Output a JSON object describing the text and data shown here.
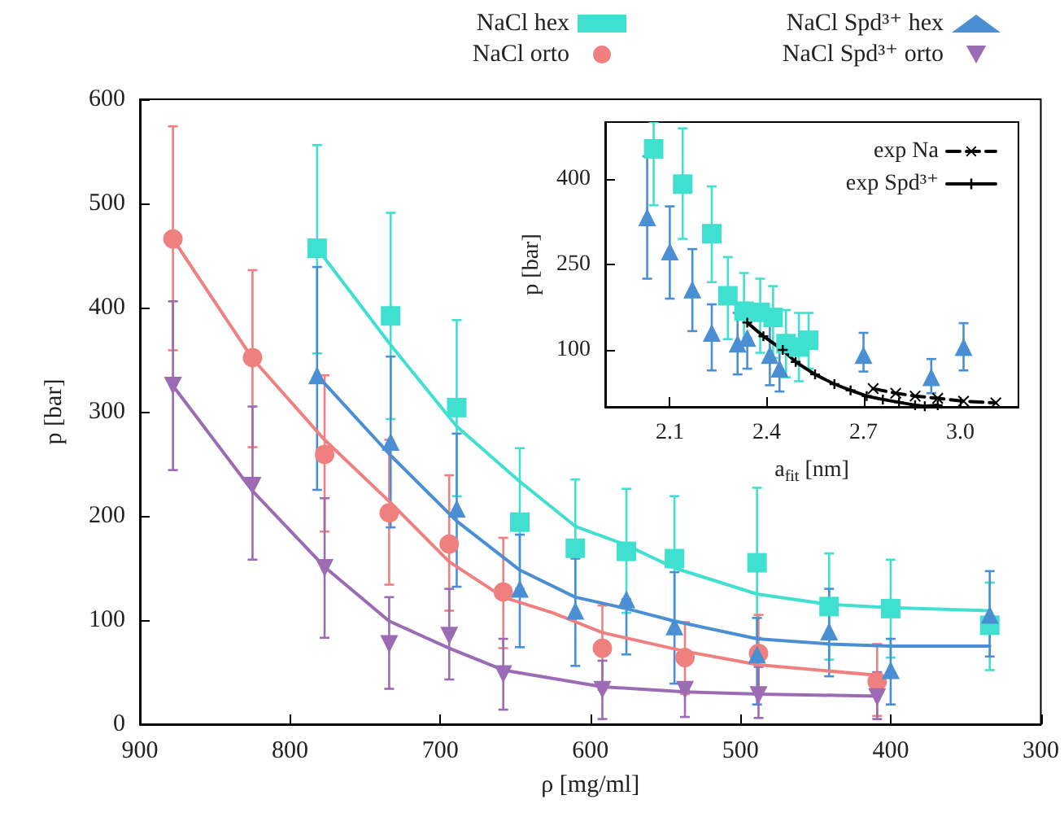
{
  "chart_data": [
    {
      "type": "scatter",
      "xlabel": "ρ [mg/ml]",
      "ylabel": "p [bar]",
      "xlim": [
        900,
        300
      ],
      "ylim": [
        0,
        600
      ],
      "xticks": [
        900,
        800,
        700,
        600,
        500,
        400,
        300
      ],
      "yticks": [
        0,
        100,
        200,
        300,
        400,
        500,
        600
      ],
      "legend": "top",
      "grid": false,
      "series": [
        {
          "name": "NaCl hex",
          "color": "#40e0d0",
          "marker": "square",
          "x": [
            782,
            733,
            689,
            647,
            610,
            576,
            544,
            489,
            441,
            400,
            334
          ],
          "values": [
            457,
            392,
            304,
            194,
            169,
            166,
            159,
            155,
            113,
            111,
            95
          ],
          "errors": [
            [
              356,
              556
            ],
            [
              293,
              491
            ],
            [
              219,
              388
            ],
            [
              130,
              265
            ],
            [
              107,
              235
            ],
            [
              107,
              226
            ],
            [
              99,
              219
            ],
            [
              83,
              227
            ],
            [
              62,
              164
            ],
            [
              64,
              158
            ],
            [
              52,
              136
            ]
          ]
        },
        {
          "name": "NaCl orto",
          "color": "#f08080",
          "marker": "circle",
          "x": [
            878,
            825,
            777,
            734,
            694,
            658,
            592,
            537,
            488,
            409
          ],
          "values": [
            466,
            352,
            259,
            203,
            173,
            127,
            73,
            64,
            68,
            41
          ],
          "errors": [
            [
              359,
              574
            ],
            [
              266,
              436
            ],
            [
              185,
              335
            ],
            [
              134,
              273
            ],
            [
              109,
              239
            ],
            [
              73,
              179
            ],
            [
              33,
              114
            ],
            [
              29,
              98
            ],
            [
              31,
              105
            ],
            [
              8,
              77
            ]
          ]
        },
        {
          "name": "NaCl Spd³⁺ hex",
          "color": "#4a8fd3",
          "marker": "triangle",
          "x": [
            782,
            733,
            689,
            647,
            610,
            576,
            544,
            489,
            441,
            400,
            334
          ],
          "values": [
            335,
            271,
            207,
            130,
            109,
            120,
            94,
            67,
            89,
            52,
            105
          ],
          "errors": [
            [
              225,
              439
            ],
            [
              189,
              353
            ],
            [
              132,
              279
            ],
            [
              74,
              182
            ],
            [
              56,
              159
            ],
            [
              67,
              120
            ],
            [
              39,
              146
            ],
            [
              19,
              102
            ],
            [
              46,
              130
            ],
            [
              19,
              82
            ],
            [
              65,
              147
            ]
          ]
        },
        {
          "name": "NaCl Spd³⁺ orto",
          "color": "#9b6bb3",
          "marker": "triangle-down",
          "x": [
            878,
            825,
            777,
            734,
            694,
            658,
            592,
            537,
            488,
            409
          ],
          "values": [
            325,
            229,
            150,
            77,
            85,
            48,
            33,
            33,
            28,
            26
          ],
          "errors": [
            [
              244,
              406
            ],
            [
              158,
              305
            ],
            [
              83,
              217
            ],
            [
              34,
              122
            ],
            [
              43,
              130
            ],
            [
              14,
              82
            ],
            [
              5,
              61
            ],
            [
              7,
              33
            ],
            [
              6,
              55
            ],
            [
              5,
              50
            ]
          ]
        },
        {
          "type": "line",
          "color": "#40e0d0",
          "marker": "none",
          "line_style": "solid",
          "x": [
            782,
            733,
            689,
            647,
            610,
            576,
            544,
            489,
            441,
            400,
            334
          ],
          "values": [
            457,
            364,
            286,
            233,
            190,
            172,
            150,
            125,
            115,
            112,
            109
          ]
        },
        {
          "type": "line",
          "color": "#f08080",
          "marker": "none",
          "line_style": "solid",
          "x": [
            878,
            825,
            777,
            734,
            694,
            658,
            625,
            592,
            537,
            488,
            409
          ],
          "values": [
            466,
            351,
            273,
            214,
            156,
            122,
            107,
            88,
            70,
            57,
            47
          ]
        },
        {
          "type": "line",
          "color": "#4a8fd3",
          "marker": "none",
          "line_style": "solid",
          "x": [
            782,
            733,
            689,
            647,
            610,
            576,
            544,
            489,
            441,
            400,
            334
          ],
          "values": [
            335,
            258,
            195,
            148,
            122,
            111,
            99,
            82,
            77,
            75,
            75
          ]
        },
        {
          "type": "line",
          "color": "#9b6bb3",
          "marker": "none",
          "line_style": "solid",
          "x": [
            878,
            825,
            777,
            734,
            694,
            658,
            625,
            592,
            537,
            488,
            409
          ],
          "values": [
            325,
            224,
            151,
            99,
            73,
            52,
            44,
            36,
            31,
            29,
            27
          ]
        }
      ]
    },
    {
      "type": "scatter",
      "xlabel": "a$_{fit}$ [nm]",
      "ylabel": "p [bar]",
      "xlim": [
        1.9,
        3.18
      ],
      "ylim": [
        0,
        500
      ],
      "xticks": [
        2.1,
        2.4,
        2.7,
        {
          "value": 3,
          "label": "3.0"
        }
      ],
      "yticks": [
        100,
        250,
        400
      ],
      "legend": "top right",
      "grid": false,
      "series": [
        {
          "color": "#40e0d0",
          "marker": "square",
          "x": [
            2.05,
            2.14,
            2.23,
            2.28,
            2.33,
            2.38,
            2.42,
            2.46,
            2.5,
            2.53
          ],
          "values": [
            453,
            391,
            304,
            195,
            168,
            166,
            157,
            111,
            105,
            117
          ],
          "errors": [
            [
              354,
              500
            ],
            [
              295,
              489
            ],
            [
              219,
              387
            ],
            [
              119,
              263
            ],
            [
              109,
              235
            ],
            [
              95,
              225
            ],
            [
              86,
              212
            ],
            [
              52,
              170
            ],
            [
              45,
              165
            ],
            [
              67,
              165
            ]
          ]
        },
        {
          "color": "#4a8fd3",
          "marker": "triangle",
          "x": [
            2.03,
            2.1,
            2.17,
            2.23,
            2.31,
            2.34,
            2.41,
            2.44,
            2.7,
            2.91,
            3.01
          ],
          "values": [
            333,
            273,
            206,
            130,
            111,
            121,
            91,
            67,
            91,
            52,
            105
          ],
          "errors": [
            [
              225,
              440
            ],
            [
              190,
              352
            ],
            [
              133,
              277
            ],
            [
              64,
              180
            ],
            [
              57,
              165
            ],
            [
              67,
              121
            ],
            [
              38,
              144
            ],
            [
              27,
              109
            ],
            [
              62,
              130
            ],
            [
              24,
              84
            ],
            [
              64,
              147
            ]
          ]
        },
        {
          "type": "line",
          "name": "exp Na",
          "color": "#000000",
          "marker": "cross",
          "line_style": "dashed",
          "x": [
            2.73,
            2.8,
            2.86,
            2.93,
            3.01,
            3.11
          ],
          "values": [
            32,
            24,
            19,
            15,
            10,
            7
          ]
        },
        {
          "type": "line",
          "name": "exp Spd³⁺",
          "color": "#000000",
          "marker": "plus",
          "line_style": "solid",
          "x": [
            2.34,
            2.39,
            2.45,
            2.49,
            2.55,
            2.61,
            2.66,
            2.71,
            2.76,
            2.81,
            2.86,
            2.89,
            2.93
          ],
          "values": [
            148,
            124,
            100,
            79,
            57,
            40,
            29,
            19,
            13,
            8,
            3,
            1,
            3
          ]
        }
      ]
    }
  ]
}
